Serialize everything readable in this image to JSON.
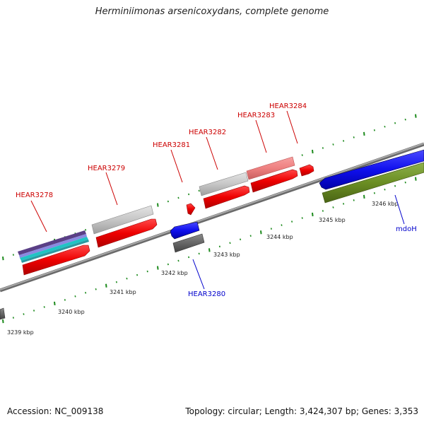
{
  "title": "Herminiimonas arsenicoxydans, complete genome",
  "footer": {
    "accession": "Accession: NC_009138",
    "summary": "Topology: circular; Length: 3,424,307 bp; Genes: 3,353"
  },
  "colors": {
    "backbone": "#8c8c8c",
    "tick": "#1c8a1c",
    "label_top": "#cc0000",
    "label_bottom": "#0000cc"
  },
  "kbp_labels": [
    "3239 kbp",
    "3240 kbp",
    "3241 kbp",
    "3242 kbp",
    "3243 kbp",
    "3244 kbp",
    "3245 kbp",
    "3246 kbp"
  ],
  "gene_labels": [
    "HEAR3278",
    "HEAR3279",
    "HEAR3281",
    "HEAR3282",
    "HEAR3283",
    "HEAR3284",
    "HEAR3280",
    "mdoH"
  ]
}
